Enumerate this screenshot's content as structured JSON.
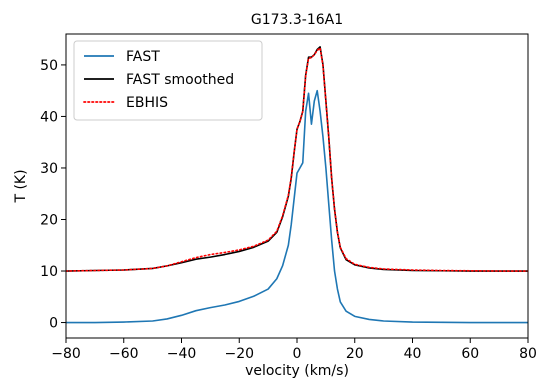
{
  "chart_data": {
    "type": "line",
    "title": "G173.3-16A1",
    "xlabel": "velocity (km/s)",
    "ylabel": "T (K)",
    "xlim": [
      -80,
      80
    ],
    "ylim": [
      -3,
      56
    ],
    "xticks": [
      -80,
      -60,
      -40,
      -20,
      0,
      20,
      40,
      60,
      80
    ],
    "yticks": [
      0,
      10,
      20,
      30,
      40,
      50
    ],
    "grid": false,
    "legend_position": "upper-left",
    "series": [
      {
        "name": "FAST",
        "color": "#1f77b4",
        "style": "solid",
        "x": [
          -80,
          -70,
          -60,
          -50,
          -45,
          -40,
          -35,
          -30,
          -25,
          -20,
          -15,
          -10,
          -7,
          -5,
          -3,
          -2,
          -1,
          0,
          1,
          2,
          3,
          4,
          5,
          6,
          7,
          8,
          9,
          10,
          11,
          12,
          13,
          14,
          15,
          17,
          20,
          25,
          30,
          40,
          50,
          60,
          70,
          80
        ],
        "y": [
          0,
          0,
          0.1,
          0.3,
          0.7,
          1.4,
          2.3,
          2.9,
          3.4,
          4.1,
          5.1,
          6.5,
          8.5,
          11,
          15,
          19,
          24,
          29,
          30,
          31,
          41,
          44.5,
          38.5,
          43,
          45,
          41,
          36,
          30,
          23,
          16,
          10,
          6.5,
          4,
          2.2,
          1.2,
          0.6,
          0.3,
          0.1,
          0.05,
          0,
          0,
          0
        ]
      },
      {
        "name": "FAST smoothed",
        "color": "#000000",
        "style": "solid",
        "x": [
          -80,
          -70,
          -60,
          -50,
          -45,
          -40,
          -35,
          -30,
          -25,
          -20,
          -15,
          -10,
          -7,
          -5,
          -3,
          -2,
          -1,
          0,
          1,
          2,
          3,
          4,
          5,
          6,
          7,
          8,
          9,
          10,
          11,
          12,
          13,
          14,
          15,
          17,
          20,
          25,
          30,
          40,
          50,
          60,
          70,
          80
        ],
        "y": [
          10,
          10.1,
          10.2,
          10.5,
          11,
          11.6,
          12.3,
          12.7,
          13.2,
          13.8,
          14.6,
          15.8,
          17.5,
          20.5,
          24.5,
          28,
          33,
          37.5,
          39,
          41,
          48,
          51.5,
          51.5,
          52,
          53,
          53.5,
          50,
          43,
          36,
          28,
          22,
          17.5,
          14.5,
          12.2,
          11.2,
          10.6,
          10.3,
          10.1,
          10.05,
          10,
          10,
          10
        ]
      },
      {
        "name": "EBHIS",
        "color": "#ff0000",
        "style": "dotted",
        "x": [
          -80,
          -70,
          -60,
          -50,
          -45,
          -40,
          -35,
          -30,
          -25,
          -20,
          -15,
          -10,
          -7,
          -5,
          -3,
          -2,
          -1,
          0,
          1,
          2,
          3,
          4,
          5,
          6,
          7,
          8,
          9,
          10,
          11,
          12,
          13,
          14,
          15,
          17,
          20,
          25,
          30,
          40,
          50,
          60,
          70,
          80
        ],
        "y": [
          10,
          10.1,
          10.2,
          10.5,
          11,
          11.8,
          12.6,
          13.2,
          13.6,
          14.1,
          14.8,
          16,
          17.7,
          20.7,
          24.7,
          28.2,
          33,
          37.5,
          39,
          41,
          47.8,
          51.3,
          51.4,
          52,
          52.8,
          53.3,
          49.8,
          43,
          36,
          28,
          22,
          17.6,
          14.6,
          12.4,
          11.3,
          10.7,
          10.4,
          10.2,
          10.1,
          10.05,
          10,
          10
        ]
      }
    ]
  }
}
